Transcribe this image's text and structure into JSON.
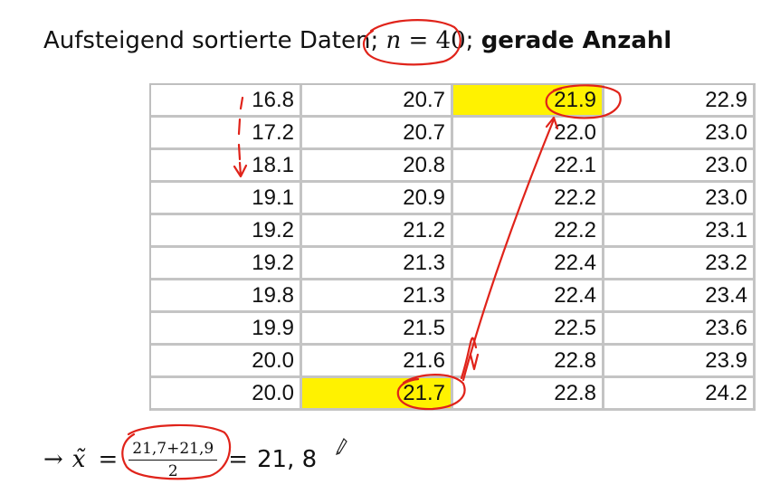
{
  "heading": {
    "prefix": "Aufsteigend sortierte Daten;",
    "n_var": "n",
    "n_eq": "=",
    "n_value": "40",
    "sep": ";",
    "emphasis": "gerade Anzahl"
  },
  "table": {
    "rows": [
      [
        "16.8",
        "20.7",
        "21.9",
        "22.9"
      ],
      [
        "17.2",
        "20.7",
        "22.0",
        "23.0"
      ],
      [
        "18.1",
        "20.8",
        "22.1",
        "23.0"
      ],
      [
        "19.1",
        "20.9",
        "22.2",
        "23.0"
      ],
      [
        "19.2",
        "21.2",
        "22.2",
        "23.1"
      ],
      [
        "19.2",
        "21.3",
        "22.4",
        "23.2"
      ],
      [
        "19.8",
        "21.3",
        "22.4",
        "23.4"
      ],
      [
        "19.9",
        "21.5",
        "22.5",
        "23.6"
      ],
      [
        "20.0",
        "21.6",
        "22.8",
        "23.9"
      ],
      [
        "20.0",
        "21.7",
        "22.8",
        "24.2"
      ]
    ],
    "highlight_color": "#fff200",
    "highlighted_cells": [
      [
        0,
        2
      ],
      [
        9,
        1
      ]
    ]
  },
  "formula": {
    "arrow": "→",
    "variable": "x̃",
    "equals": "=",
    "numerator": "21,7+21,9",
    "denominator": "2",
    "result": "21, 8"
  },
  "annotation_color": "#e0231a",
  "icons": {
    "pen": "pen-icon"
  }
}
